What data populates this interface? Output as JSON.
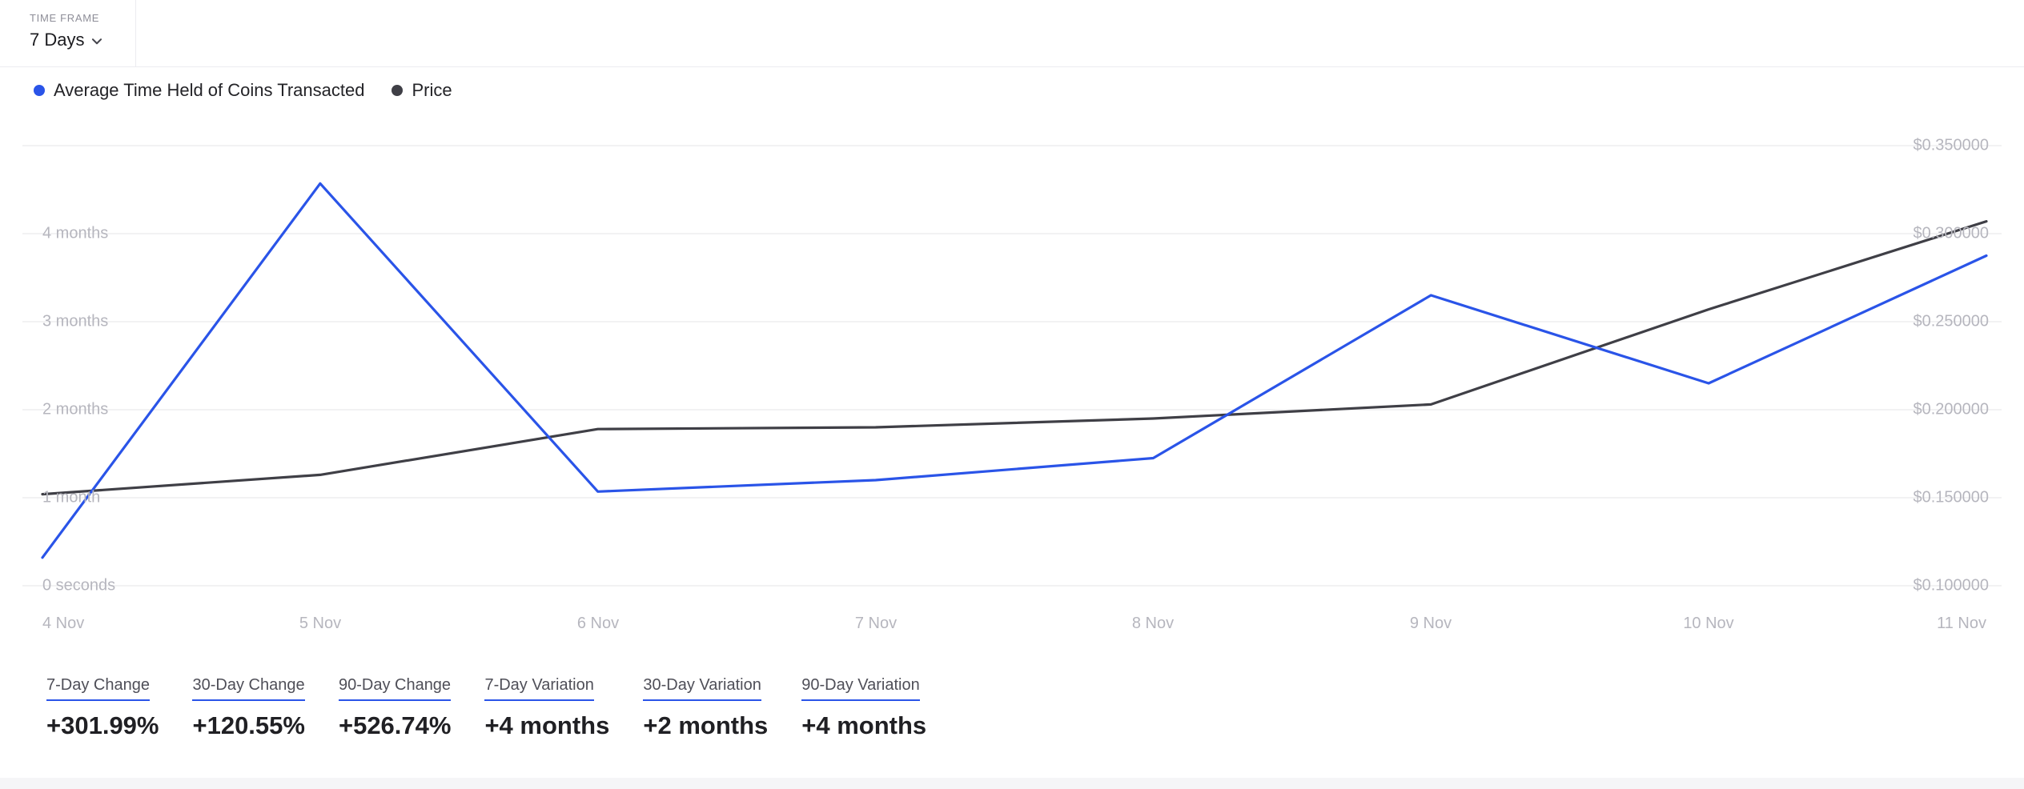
{
  "header": {
    "timeframe_label": "TIME FRAME",
    "timeframe_value": "7 Days"
  },
  "colors": {
    "accent_blue": "#2A54E8",
    "price_line": "#3F3F46",
    "grid": "#EDEDEF",
    "axis_text": "#B6B6BE"
  },
  "chart_data": {
    "type": "line",
    "x": [
      "4 Nov",
      "5 Nov",
      "6 Nov",
      "7 Nov",
      "8 Nov",
      "9 Nov",
      "10 Nov",
      "11 Nov"
    ],
    "series": [
      {
        "name": "Average Time Held of Coins Transacted",
        "axis": "left",
        "unit": "months",
        "color": "#2A54E8",
        "values": [
          0.32,
          4.57,
          1.07,
          1.2,
          1.45,
          3.3,
          2.3,
          3.75
        ]
      },
      {
        "name": "Price",
        "axis": "right",
        "unit": "USD",
        "color": "#3F3F46",
        "values": [
          0.152,
          0.163,
          0.189,
          0.19,
          0.195,
          0.203,
          0.257,
          0.307
        ]
      }
    ],
    "left_axis": {
      "ticks": [
        "4 months",
        "3 months",
        "2 months",
        "1 month",
        "0 seconds"
      ],
      "tick_values": [
        4,
        3,
        2,
        1,
        0
      ],
      "range": [
        0,
        5
      ],
      "unit": "months"
    },
    "right_axis": {
      "ticks": [
        "$0.350000",
        "$0.300000",
        "$0.250000",
        "$0.200000",
        "$0.150000",
        "$0.100000"
      ],
      "tick_values": [
        0.35,
        0.3,
        0.25,
        0.2,
        0.15,
        0.1
      ],
      "range": [
        0.1,
        0.35
      ],
      "unit": "USD"
    },
    "grid": "horizontal",
    "legend_position": "top-left"
  },
  "stats": [
    {
      "label": "7-Day Change",
      "value": "+301.99%"
    },
    {
      "label": "30-Day Change",
      "value": "+120.55%"
    },
    {
      "label": "90-Day Change",
      "value": "+526.74%"
    },
    {
      "label": "7-Day Variation",
      "value": "+4 months"
    },
    {
      "label": "30-Day Variation",
      "value": "+2 months"
    },
    {
      "label": "90-Day Variation",
      "value": "+4 months"
    }
  ]
}
